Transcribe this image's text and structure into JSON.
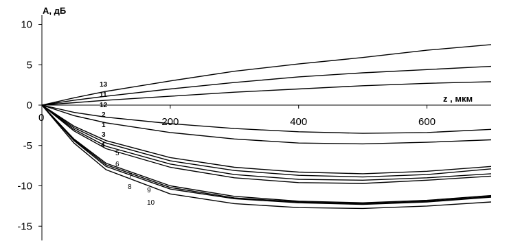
{
  "chart_data": {
    "type": "line",
    "title": "",
    "ylabel": "А, дБ",
    "xlabel": "z , мкм",
    "xlim": [
      0,
      700
    ],
    "ylim": [
      -15,
      10
    ],
    "x_ticks": [
      200,
      400,
      600
    ],
    "y_ticks": [
      10,
      5,
      0,
      -5,
      -10,
      -15
    ],
    "origin_label": "0",
    "grid": false,
    "legend": "none",
    "series": [
      {
        "name": "13",
        "x": [
          0,
          50,
          100,
          200,
          300,
          400,
          500,
          600,
          700
        ],
        "y": [
          0,
          0.9,
          1.7,
          3.0,
          4.2,
          5.1,
          5.9,
          6.8,
          7.5
        ]
      },
      {
        "name": "11",
        "x": [
          0,
          50,
          100,
          200,
          300,
          400,
          500,
          600,
          700
        ],
        "y": [
          0,
          0.6,
          1.1,
          2.0,
          2.8,
          3.5,
          4.0,
          4.4,
          4.8
        ]
      },
      {
        "name": "12",
        "x": [
          0,
          50,
          100,
          200,
          300,
          400,
          500,
          600,
          700
        ],
        "y": [
          0,
          0.3,
          0.6,
          1.1,
          1.6,
          2.0,
          2.4,
          2.7,
          2.9
        ]
      },
      {
        "name": "2",
        "x": [
          0,
          50,
          100,
          200,
          300,
          400,
          500,
          600,
          700
        ],
        "y": [
          0,
          -0.9,
          -1.5,
          -2.3,
          -2.9,
          -3.3,
          -3.5,
          -3.4,
          -3.0
        ]
      },
      {
        "name": "1",
        "x": [
          0,
          50,
          100,
          200,
          300,
          400,
          500,
          600,
          700
        ],
        "y": [
          0,
          -1.3,
          -2.2,
          -3.4,
          -4.2,
          -4.7,
          -4.8,
          -4.6,
          -4.3
        ]
      },
      {
        "name": "3",
        "x": [
          0,
          50,
          100,
          200,
          300,
          400,
          500,
          600,
          700
        ],
        "y": [
          0,
          -2.6,
          -4.4,
          -6.5,
          -7.7,
          -8.3,
          -8.5,
          -8.2,
          -7.6
        ]
      },
      {
        "name": "4",
        "x": [
          0,
          50,
          100,
          200,
          300,
          400,
          500,
          600,
          700
        ],
        "y": [
          0,
          -2.8,
          -4.7,
          -6.9,
          -8.1,
          -8.7,
          -8.9,
          -8.6,
          -7.9
        ]
      },
      {
        "name": "5",
        "x": [
          0,
          50,
          100,
          200,
          300,
          400,
          500,
          600,
          700
        ],
        "y": [
          0,
          -3.0,
          -5.1,
          -7.3,
          -8.6,
          -9.2,
          -9.3,
          -9.0,
          -8.5
        ]
      },
      {
        "name": "6",
        "x": [
          0,
          50,
          100,
          200,
          300,
          400,
          500,
          600,
          700
        ],
        "y": [
          0,
          -3.2,
          -5.4,
          -7.7,
          -9.0,
          -9.6,
          -9.7,
          -9.3,
          -8.8
        ]
      },
      {
        "name": "7",
        "x": [
          0,
          50,
          100,
          200,
          300,
          400,
          500,
          600,
          700
        ],
        "y": [
          0,
          -4.2,
          -7.2,
          -10.0,
          -11.3,
          -11.9,
          -12.1,
          -11.8,
          -11.2
        ]
      },
      {
        "name": "8",
        "x": [
          0,
          50,
          100,
          200,
          300,
          400,
          500,
          600,
          700
        ],
        "y": [
          0,
          -4.3,
          -7.4,
          -10.2,
          -11.5,
          -12.0,
          -12.2,
          -11.9,
          -11.3
        ]
      },
      {
        "name": "9",
        "x": [
          0,
          50,
          100,
          200,
          300,
          400,
          500,
          600,
          700
        ],
        "y": [
          0,
          -4.4,
          -7.6,
          -10.4,
          -11.6,
          -12.1,
          -12.3,
          -12.0,
          -11.4
        ]
      },
      {
        "name": "10",
        "x": [
          0,
          50,
          100,
          200,
          300,
          400,
          500,
          600,
          700
        ],
        "y": [
          0,
          -4.7,
          -8.0,
          -11.0,
          -12.2,
          -12.7,
          -12.8,
          -12.5,
          -12.0
        ]
      }
    ]
  }
}
